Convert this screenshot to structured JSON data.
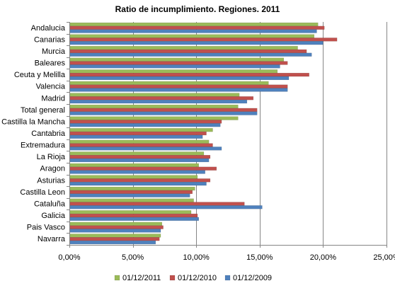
{
  "chart_data": {
    "type": "bar",
    "orientation": "horizontal",
    "title": "Ratio de incumplimiento. Regiones. 2011",
    "xlabel": "",
    "ylabel": "",
    "xlim": [
      0,
      25
    ],
    "x_ticks": [
      0,
      5,
      10,
      15,
      20,
      25
    ],
    "x_tick_labels": [
      "0,00%",
      "5,00%",
      "10,00%",
      "15,00%",
      "20,00%",
      "25,00%"
    ],
    "grid": "vertical major gridlines",
    "legend_position": "bottom",
    "categories": [
      "Andalucia",
      "Canarias",
      "Murcia",
      "Baleares",
      "Ceuta y Melilla",
      "Valencia",
      "Madrid",
      "Total general",
      "Castilla la Mancha",
      "Cantabria",
      "Extremadura",
      "La Rioja",
      "Aragon",
      "Asturias",
      "Castilla Leon",
      "Cataluña",
      "Galicia",
      "Pais Vasco",
      "Navarra"
    ],
    "series": [
      {
        "name": "01/12/2011",
        "color": "#9BBB59",
        "values": [
          19.6,
          19.3,
          18.0,
          16.9,
          16.4,
          15.7,
          13.4,
          13.3,
          13.3,
          11.3,
          11.0,
          10.6,
          10.2,
          10.1,
          9.9,
          9.8,
          9.6,
          7.3,
          7.2
        ]
      },
      {
        "name": "01/12/2010",
        "color": "#C0504D",
        "values": [
          20.1,
          21.1,
          18.7,
          17.2,
          18.9,
          17.2,
          14.5,
          14.8,
          12.0,
          10.8,
          11.3,
          11.1,
          11.6,
          11.1,
          9.7,
          13.8,
          10.1,
          7.4,
          7.1
        ]
      },
      {
        "name": "01/12/2009",
        "color": "#4F81BD",
        "values": [
          19.5,
          20.0,
          19.1,
          16.6,
          17.3,
          17.2,
          14.0,
          14.8,
          11.9,
          10.5,
          12.0,
          11.0,
          10.7,
          10.8,
          9.5,
          15.2,
          10.2,
          7.2,
          6.8
        ]
      }
    ]
  }
}
